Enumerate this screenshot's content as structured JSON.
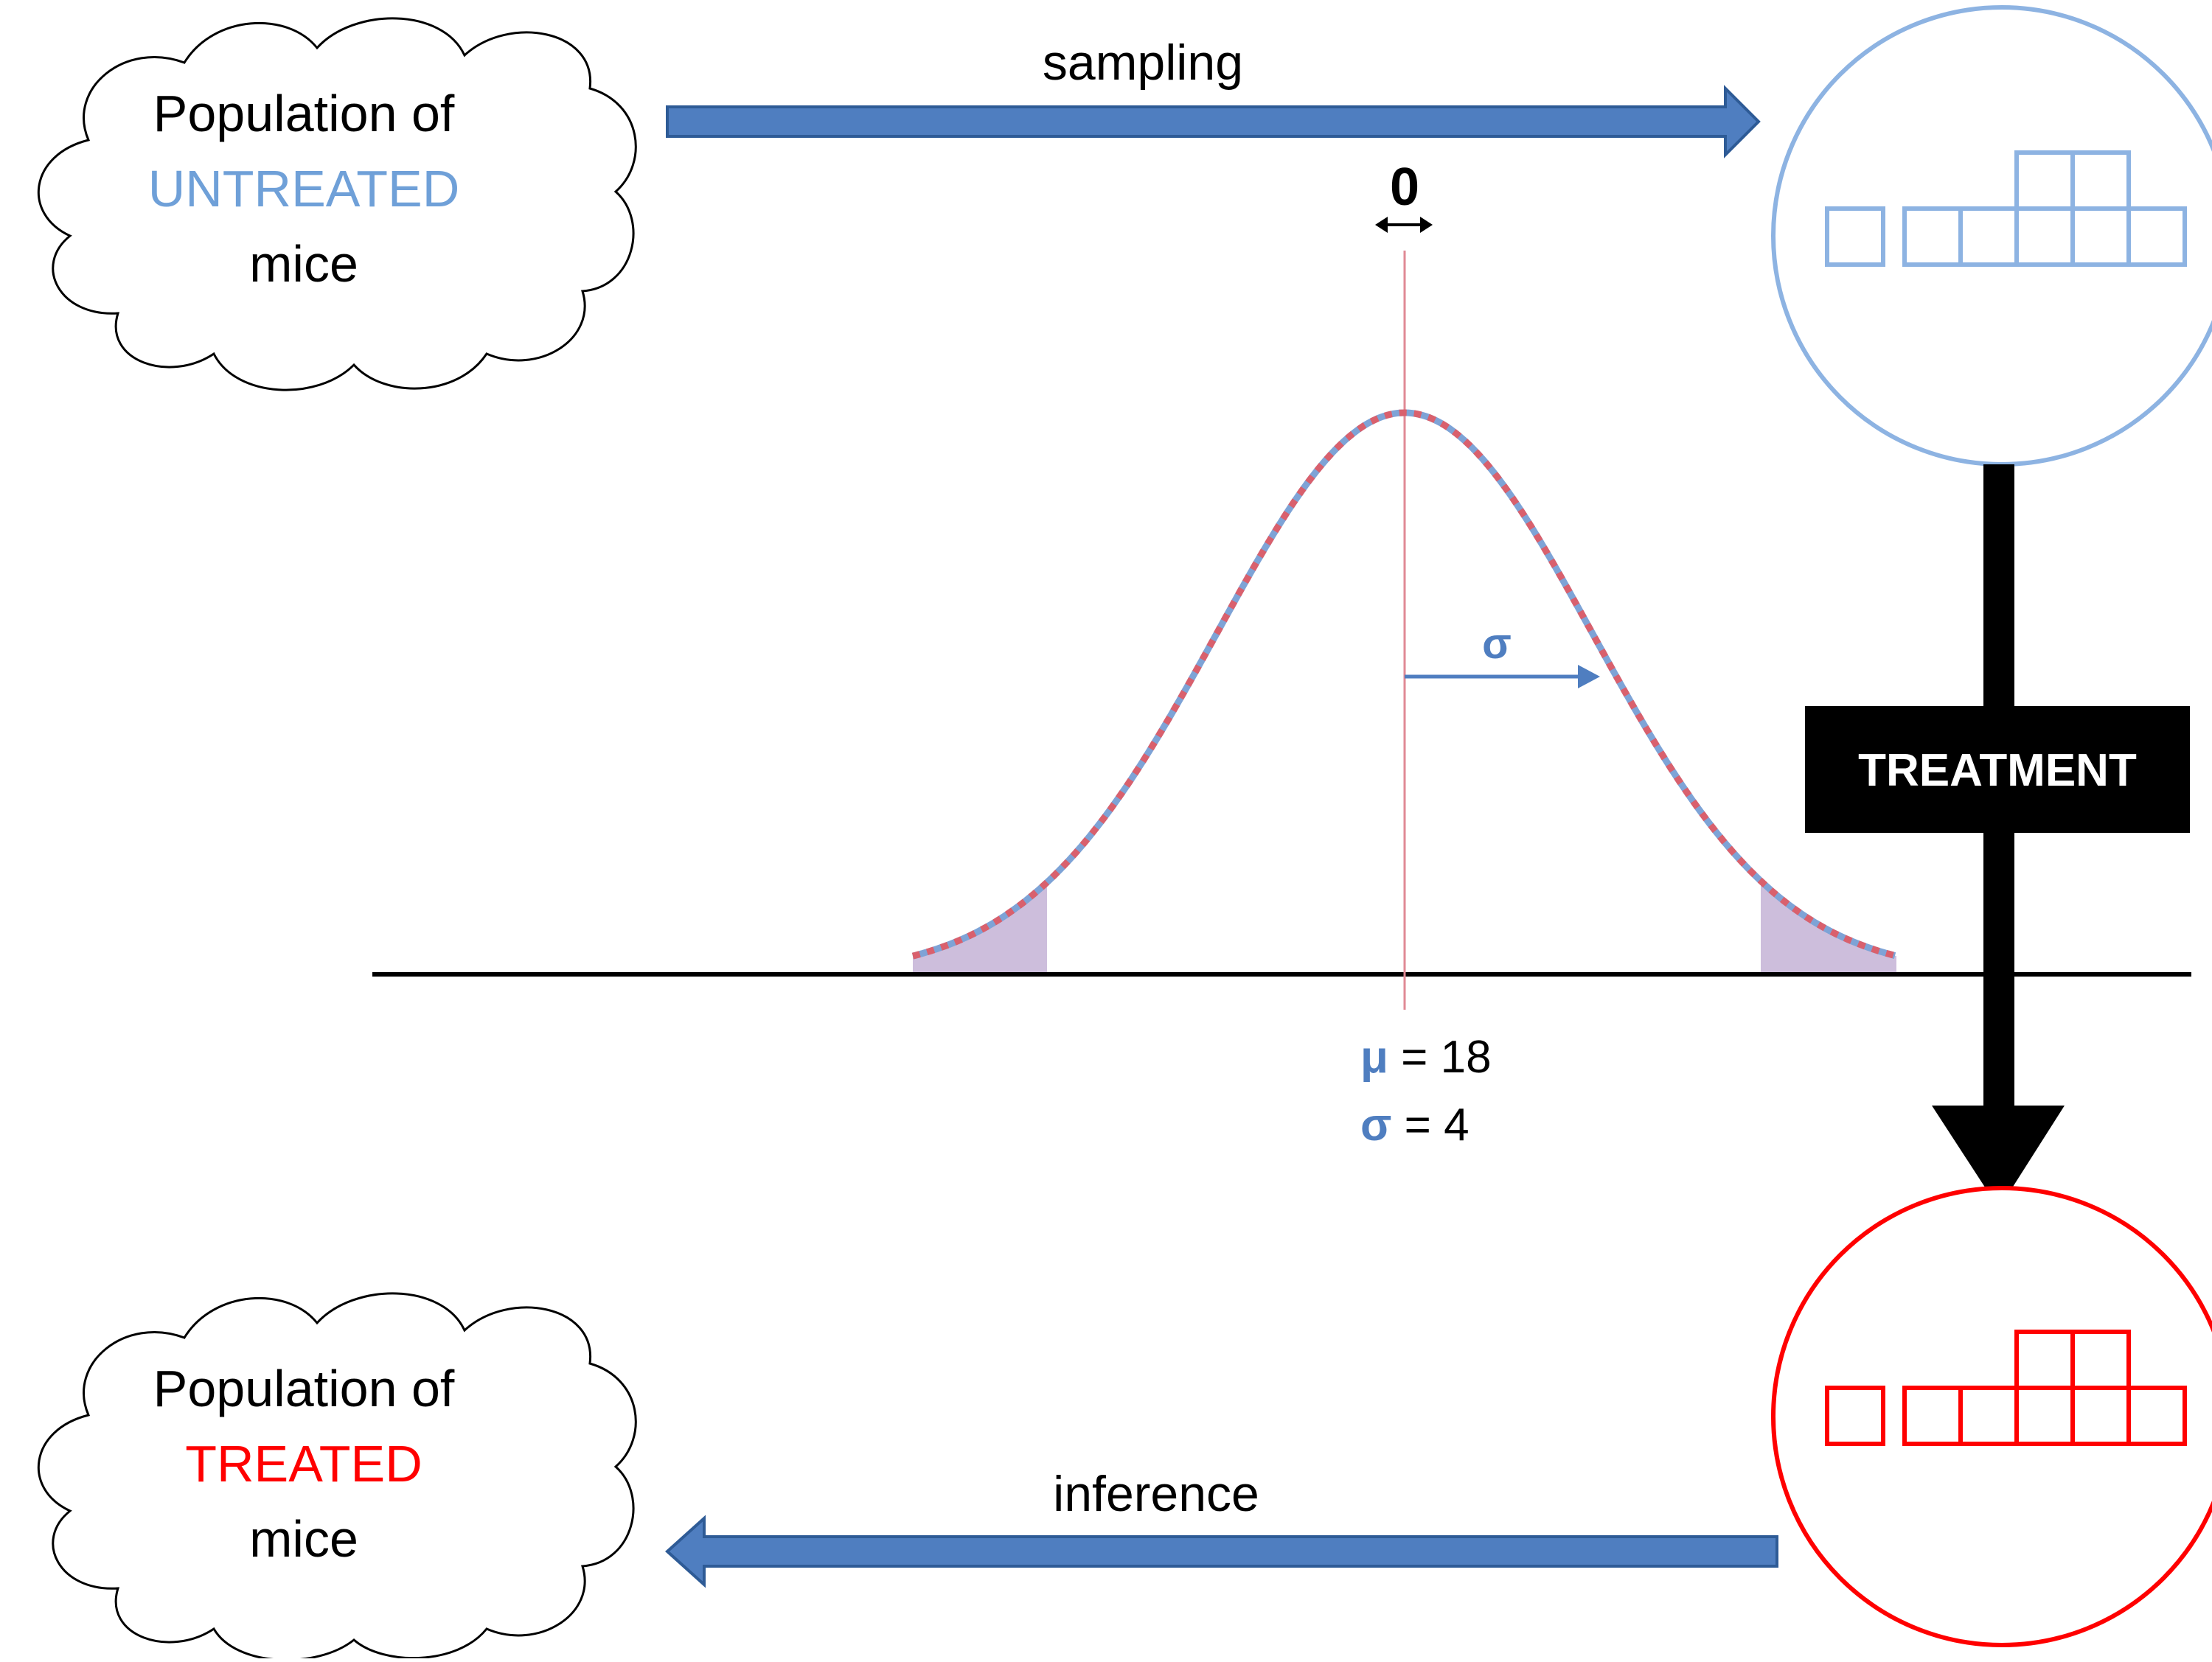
{
  "top_cloud": {
    "line1": "Population of",
    "line2": "UNTREATED",
    "line3": "mice",
    "highlight_color": "#6fa0d8"
  },
  "bottom_cloud": {
    "line1": "Population of",
    "line2": "TREATED",
    "line3": "mice",
    "highlight_color": "#ff0000"
  },
  "sampling_arrow": {
    "label": "sampling"
  },
  "inference_arrow": {
    "label": "inference"
  },
  "treatment_box": {
    "label": "TREATMENT"
  },
  "shift_indicator": {
    "label": "0"
  },
  "distribution": {
    "mu_symbol": "μ",
    "mu_text": " = 18",
    "sigma_symbol": "σ",
    "sigma_text": " = 4",
    "sigma_arrow_label": "σ",
    "curve_colors": [
      "#7ea3d6",
      "#d9606d"
    ],
    "tail_fill": "#cdbedc"
  },
  "colors": {
    "arrow_fill": "#4f7ec0",
    "arrow_stroke": "#2e5b96",
    "untreated_circle": "#8db3e2",
    "treated_circle": "#ff0000",
    "mean_line": "#e08a95"
  }
}
